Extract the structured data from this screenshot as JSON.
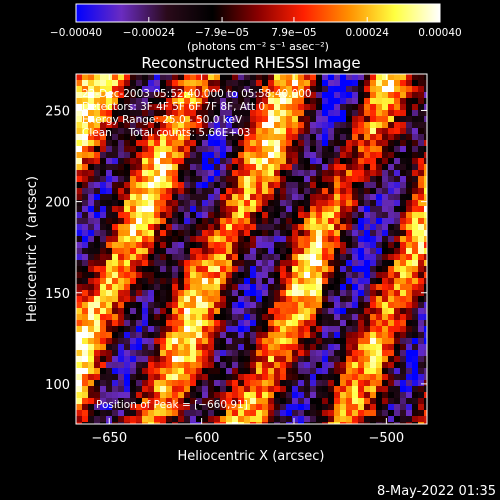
{
  "chart_data": {
    "type": "heatmap",
    "title": "Reconstructed RHESSI Image",
    "xlabel": "Heliocentric X (arcsec)",
    "ylabel": "Heliocentric Y (arcsec)",
    "xlim": [
      -668,
      -478
    ],
    "ylim": [
      78,
      270
    ],
    "x_ticks": [
      -650,
      -600,
      -550,
      -500
    ],
    "x_tick_labels": [
      "−650",
      "−600",
      "−550",
      "−500"
    ],
    "y_ticks": [
      100,
      150,
      200,
      250
    ],
    "y_tick_labels": [
      "100",
      "150",
      "200",
      "250"
    ],
    "colorbar": {
      "range": [
        -0.0004,
        0.0004
      ],
      "tick_values": [
        -0.0004,
        -0.00024,
        -7.9e-05,
        7.9e-05,
        0.00024,
        0.0004
      ],
      "tick_labels": [
        "−0.00040",
        "−0.00024",
        "−7.9e−05",
        "7.9e−05",
        "0.00024",
        "0.00040"
      ],
      "label": "(photons cm⁻² s⁻¹ asec⁻²)",
      "colors": [
        "#0000ff",
        "#6a2cc0",
        "#2a0a1a",
        "#000000",
        "#8a0000",
        "#ff2000",
        "#ff9000",
        "#ffff40",
        "#ffffff"
      ]
    },
    "annotations": [
      "22-Dec-2003 05:52:40.000 to 05:58:40.000",
      "Detectors: 3F 4F 5F 6F 7F 8F, Att 0",
      "Energy Range: 25.0 - 50.0 keV",
      "Clean     Total counts: 5.66E+03"
    ],
    "peak_label": "Position of Peak = [−660,91]",
    "peak": {
      "x": -660,
      "y": 91
    },
    "grid": false,
    "legend": "none"
  },
  "footer": {
    "date_stamp": "8-May-2022 01:35"
  }
}
